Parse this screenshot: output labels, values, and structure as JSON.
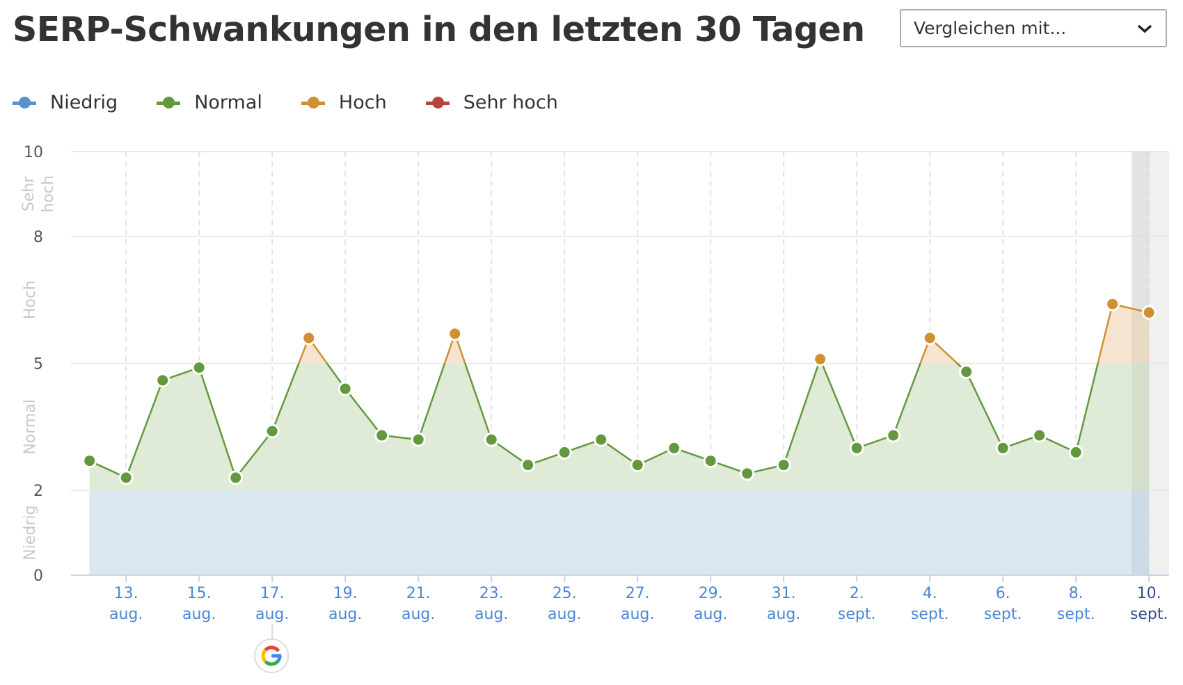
{
  "title": "SERP-Schwankungen in den letzten 30 Tagen",
  "compare_dropdown": {
    "selected": "Vergleichen mit...",
    "icon": "chevron-down-icon"
  },
  "legend": [
    {
      "label": "Niedrig",
      "color": "#5b8fce"
    },
    {
      "label": "Normal",
      "color": "#62993e"
    },
    {
      "label": "Hoch",
      "color": "#d18f30"
    },
    {
      "label": "Sehr hoch",
      "color": "#b8433a"
    }
  ],
  "chart_data": {
    "type": "area",
    "title": "",
    "ylim": [
      0,
      10
    ],
    "yticks": [
      "0",
      "2",
      "5",
      "8",
      "10"
    ],
    "bands": [
      {
        "label": "Niedrig",
        "from": 0,
        "to": 2
      },
      {
        "label": "Normal",
        "from": 2,
        "to": 5
      },
      {
        "label": "Hoch",
        "from": 5,
        "to": 8
      },
      {
        "label": "Sehr hoch",
        "from": 8,
        "to": 10
      }
    ],
    "x": [
      "12. aug.",
      "13. aug.",
      "14. aug.",
      "15. aug.",
      "16. aug.",
      "17. aug.",
      "18. aug.",
      "19. aug.",
      "20. aug.",
      "21. aug.",
      "22. aug.",
      "23. aug.",
      "24. aug.",
      "25. aug.",
      "26. aug.",
      "27. aug.",
      "28. aug.",
      "29. aug.",
      "30. aug.",
      "31. aug.",
      "1. sept.",
      "2. sept.",
      "3. sept.",
      "4. sept.",
      "5. sept.",
      "6. sept.",
      "7. sept.",
      "8. sept.",
      "9. sept.",
      "10. sept."
    ],
    "values": [
      2.7,
      2.3,
      4.6,
      4.9,
      2.3,
      3.4,
      5.6,
      4.4,
      3.3,
      3.2,
      5.7,
      3.2,
      2.6,
      2.9,
      3.2,
      2.6,
      3.0,
      2.7,
      2.4,
      2.6,
      5.1,
      3.0,
      3.3,
      5.6,
      4.8,
      3.0,
      3.3,
      2.9,
      6.4,
      6.2
    ],
    "xtick_labels": [
      [
        "13.",
        "aug."
      ],
      [
        "15.",
        "aug."
      ],
      [
        "17.",
        "aug."
      ],
      [
        "19.",
        "aug."
      ],
      [
        "21.",
        "aug."
      ],
      [
        "23.",
        "aug."
      ],
      [
        "25.",
        "aug."
      ],
      [
        "27.",
        "aug."
      ],
      [
        "29.",
        "aug."
      ],
      [
        "31.",
        "aug."
      ],
      [
        "2.",
        "sept."
      ],
      [
        "4.",
        "sept."
      ],
      [
        "6.",
        "sept."
      ],
      [
        "8.",
        "sept."
      ],
      [
        "10.",
        "sept."
      ]
    ],
    "highlighted_day": "10. sept.",
    "annotation": {
      "date": "17. aug.",
      "icon": "google-icon"
    },
    "grid": true,
    "legend_position": "top-left"
  }
}
